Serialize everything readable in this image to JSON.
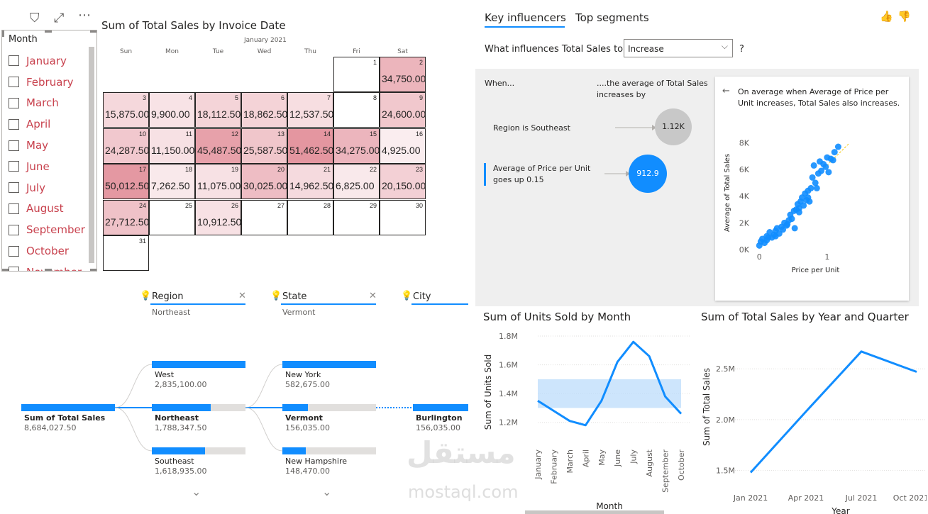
{
  "slicer": {
    "title": "Month",
    "items": [
      "January",
      "February",
      "March",
      "April",
      "May",
      "June",
      "July",
      "August",
      "September",
      "October",
      "November"
    ]
  },
  "calendar": {
    "title": "Sum of Total Sales by Invoice Date",
    "month_label": "January 2021",
    "weekdays": [
      "Sun",
      "Mon",
      "Tue",
      "Wed",
      "Thu",
      "Fri",
      "Sat"
    ],
    "days": [
      {
        "day": "1",
        "value": ""
      },
      {
        "day": "2",
        "value": "34,750.00"
      },
      {
        "day": "3",
        "value": "15,875.00"
      },
      {
        "day": "4",
        "value": "9,900.00"
      },
      {
        "day": "5",
        "value": "18,112.50"
      },
      {
        "day": "6",
        "value": "18,862.50"
      },
      {
        "day": "7",
        "value": "12,537.50"
      },
      {
        "day": "8",
        "value": ""
      },
      {
        "day": "9",
        "value": "24,600.00"
      },
      {
        "day": "10",
        "value": "24,287.50"
      },
      {
        "day": "11",
        "value": "11,150.00"
      },
      {
        "day": "12",
        "value": "45,487.50"
      },
      {
        "day": "13",
        "value": "25,587.50"
      },
      {
        "day": "14",
        "value": "51,462.50"
      },
      {
        "day": "15",
        "value": "34,275.00"
      },
      {
        "day": "16",
        "value": "4,925.00"
      },
      {
        "day": "17",
        "value": "50,012.50"
      },
      {
        "day": "18",
        "value": "7,262.50"
      },
      {
        "day": "19",
        "value": "11,075.00"
      },
      {
        "day": "20",
        "value": "30,025.00"
      },
      {
        "day": "21",
        "value": "14,962.50"
      },
      {
        "day": "22",
        "value": "6,825.00"
      },
      {
        "day": "23",
        "value": "20,150.00"
      },
      {
        "day": "24",
        "value": "27,712.50"
      },
      {
        "day": "25",
        "value": ""
      },
      {
        "day": "26",
        "value": "10,912.50"
      },
      {
        "day": "27",
        "value": ""
      },
      {
        "day": "28",
        "value": ""
      },
      {
        "day": "29",
        "value": ""
      },
      {
        "day": "30",
        "value": ""
      },
      {
        "day": "31",
        "value": ""
      }
    ],
    "heat_color": "#e8a0a8"
  },
  "key_influencers": {
    "tabs": [
      "Key influencers",
      "Top segments"
    ],
    "question": "What influences Total Sales to",
    "select_value": "Increase",
    "help": "?",
    "when_label": "When...",
    "avg_label": "....the average of Total Sales increases by",
    "influencers": [
      {
        "label": "Region is Southeast",
        "value": "1.12K"
      },
      {
        "label": "Average of Price per Unit goes up 0.15",
        "value": "912.9"
      }
    ],
    "card_text": "On average when Average of Price per Unit increases, Total Sales also increases.",
    "scatter": {
      "xlabel": "Price per Unit",
      "ylabel": "Average of Total Sales",
      "yticks": [
        "0K",
        "2K",
        "4K",
        "6K",
        "8K"
      ],
      "xticks": [
        "0",
        "1"
      ]
    }
  },
  "decomp": {
    "headers": [
      {
        "title": "Region",
        "sub": "Northeast"
      },
      {
        "title": "State",
        "sub": "Vermont"
      },
      {
        "title": "City",
        "sub": ""
      }
    ],
    "root": {
      "label": "Sum of Total Sales",
      "value": "8,684,027.50"
    },
    "level1": [
      {
        "label": "West",
        "value": "2,835,100.00",
        "fraction": 1.0
      },
      {
        "label": "Northeast",
        "value": "1,788,347.50",
        "fraction": 0.63
      },
      {
        "label": "Southeast",
        "value": "1,618,935.00",
        "fraction": 0.57
      }
    ],
    "level2": [
      {
        "label": "New York",
        "value": "582,675.00",
        "fraction": 1.0
      },
      {
        "label": "Vermont",
        "value": "156,035.00",
        "fraction": 0.27
      },
      {
        "label": "New Hampshire",
        "value": "148,470.00",
        "fraction": 0.25
      }
    ],
    "level3": {
      "label": "Burlington",
      "value": "156,035.00",
      "fraction": 1.0
    }
  },
  "units_chart": {
    "title": "Sum of Units Sold by Month",
    "ylabel": "Sum of Units Sold",
    "xlabel": "Month",
    "yticks": [
      "1.2M",
      "1.4M",
      "1.6M",
      "1.8M"
    ]
  },
  "sales_quarter_chart": {
    "title": "Sum of Total Sales by Year and Quarter",
    "ylabel": "Sum of Total Sales",
    "xlabel": "Year",
    "yticks": [
      "1.5M",
      "2.0M",
      "2.5M"
    ]
  },
  "chart_data": [
    {
      "type": "line",
      "title": "Sum of Units Sold by Month",
      "categories": [
        "January",
        "February",
        "March",
        "April",
        "May",
        "June",
        "July",
        "August",
        "September",
        "October"
      ],
      "values": [
        1.35,
        1.28,
        1.21,
        1.18,
        1.35,
        1.62,
        1.76,
        1.66,
        1.38,
        1.26
      ],
      "ylim": [
        1.1,
        1.82
      ],
      "band": [
        1.3,
        1.5
      ],
      "xlabel": "Month",
      "ylabel": "Sum of Units Sold",
      "color": "#118dff"
    },
    {
      "type": "line",
      "title": "Sum of Total Sales by Year and Quarter",
      "categories": [
        "Jan 2021",
        "Apr 2021",
        "Jul 2021",
        "Oct 2021"
      ],
      "values": [
        1.48,
        2.08,
        2.67,
        2.47
      ],
      "ylim": [
        1.4,
        2.85
      ],
      "xlabel": "Year",
      "ylabel": "Sum of Total Sales",
      "color": "#118dff"
    },
    {
      "type": "scatter",
      "title": "",
      "xlabel": "Price per Unit",
      "ylabel": "Average of Total Sales",
      "xlim": [
        0,
        1.3
      ],
      "ylim": [
        0,
        8.5
      ],
      "points": [
        [
          0.08,
          0.3
        ],
        [
          0.1,
          0.6
        ],
        [
          0.12,
          0.8
        ],
        [
          0.15,
          0.5
        ],
        [
          0.18,
          1.0
        ],
        [
          0.2,
          0.9
        ],
        [
          0.22,
          1.3
        ],
        [
          0.25,
          0.9
        ],
        [
          0.28,
          1.1
        ],
        [
          0.3,
          1.4
        ],
        [
          0.32,
          1.6
        ],
        [
          0.35,
          1.2
        ],
        [
          0.38,
          1.7
        ],
        [
          0.4,
          1.5
        ],
        [
          0.42,
          2.0
        ],
        [
          0.45,
          1.8
        ],
        [
          0.48,
          2.2
        ],
        [
          0.5,
          2.6
        ],
        [
          0.52,
          2.3
        ],
        [
          0.55,
          2.9
        ],
        [
          0.56,
          1.6
        ],
        [
          0.58,
          3.0
        ],
        [
          0.6,
          3.4
        ],
        [
          0.62,
          2.8
        ],
        [
          0.64,
          3.6
        ],
        [
          0.66,
          3.9
        ],
        [
          0.68,
          3.3
        ],
        [
          0.7,
          4.2
        ],
        [
          0.72,
          3.7
        ],
        [
          0.74,
          4.4
        ],
        [
          0.76,
          3.6
        ],
        [
          0.78,
          4.6
        ],
        [
          0.8,
          5.4
        ],
        [
          0.82,
          6.3
        ],
        [
          0.84,
          5.0
        ],
        [
          0.86,
          4.6
        ],
        [
          0.88,
          5.7
        ],
        [
          0.9,
          6.6
        ],
        [
          0.92,
          5.9
        ],
        [
          0.95,
          6.4
        ],
        [
          0.98,
          6.2
        ],
        [
          1.0,
          6.9
        ],
        [
          1.02,
          5.8
        ],
        [
          1.05,
          6.8
        ],
        [
          1.08,
          6.7
        ],
        [
          1.1,
          7.3
        ],
        [
          1.15,
          7.7
        ],
        [
          0.18,
          0.7
        ],
        [
          0.3,
          1.0
        ],
        [
          0.46,
          1.9
        ],
        [
          0.62,
          3.1
        ],
        [
          0.74,
          3.9
        ]
      ],
      "color": "#118dff"
    }
  ],
  "watermark": {
    "arabic": "مستقل",
    "latin": "mostaql.com"
  }
}
